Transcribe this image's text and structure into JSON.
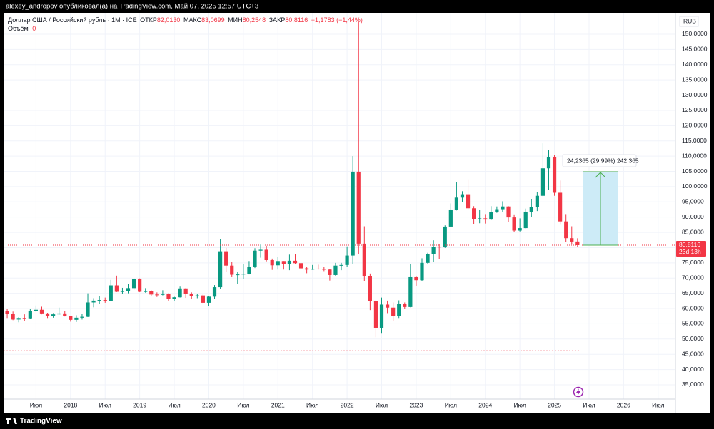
{
  "page": {
    "publisher": "alexey_andropov опубликовал(а) на TradingView.com, Май 07, 2025 12:57 UTC+3",
    "brand": "TradingView"
  },
  "chart_data": {
    "type": "candlestick",
    "legend": {
      "symbol": "Доллар США / Российский рубль · 1М · ICE",
      "open_label": "ОТКР",
      "open": "82,0130",
      "high_label": "МАКС",
      "high": "83,0699",
      "low_label": "МИН",
      "low": "80,2548",
      "close_label": "ЗАКР",
      "close": "80,8116",
      "change": "−1,1783 (−1,44%)",
      "volume_label": "Объём",
      "volume": "0"
    },
    "currency": "RUB",
    "last_price_label": "80,8116",
    "countdown": "23d 13h",
    "measure_label": "24,2365 (29,99%) 242 365",
    "up_color": "#089981",
    "down_color": "#f23645",
    "x": [
      "2017-02",
      "2017-03",
      "2017-04",
      "2017-05",
      "2017-06",
      "2017-07",
      "2017-08",
      "2017-09",
      "2017-10",
      "2017-11",
      "2017-12",
      "2018-01",
      "2018-02",
      "2018-03",
      "2018-04",
      "2018-05",
      "2018-06",
      "2018-07",
      "2018-08",
      "2018-09",
      "2018-10",
      "2018-11",
      "2018-12",
      "2019-01",
      "2019-02",
      "2019-03",
      "2019-04",
      "2019-05",
      "2019-06",
      "2019-07",
      "2019-08",
      "2019-09",
      "2019-10",
      "2019-11",
      "2019-12",
      "2020-01",
      "2020-02",
      "2020-03",
      "2020-04",
      "2020-05",
      "2020-06",
      "2020-07",
      "2020-08",
      "2020-09",
      "2020-10",
      "2020-11",
      "2020-12",
      "2021-01",
      "2021-02",
      "2021-03",
      "2021-04",
      "2021-05",
      "2021-06",
      "2021-07",
      "2021-08",
      "2021-09",
      "2021-10",
      "2021-11",
      "2021-12",
      "2022-01",
      "2022-02",
      "2022-03",
      "2022-04",
      "2022-05",
      "2022-06",
      "2022-07",
      "2022-08",
      "2022-09",
      "2022-10",
      "2022-11",
      "2022-12",
      "2023-01",
      "2023-02",
      "2023-03",
      "2023-04",
      "2023-05",
      "2023-06",
      "2023-07",
      "2023-08",
      "2023-09",
      "2023-10",
      "2023-11",
      "2023-12",
      "2024-01",
      "2024-02",
      "2024-03",
      "2024-04",
      "2024-05",
      "2024-06",
      "2024-07",
      "2024-08",
      "2024-09",
      "2024-10",
      "2024-11",
      "2024-12",
      "2025-01",
      "2025-02",
      "2025-03",
      "2025-04",
      "2025-05"
    ],
    "open": [
      59.2,
      58.2,
      56.4,
      56.9,
      56.8,
      59.1,
      59.6,
      58.4,
      57.6,
      58.1,
      58.4,
      57.6,
      56.3,
      57.0,
      57.3,
      62.0,
      62.6,
      62.8,
      62.5,
      67.6,
      65.5,
      65.7,
      66.7,
      69.6,
      65.5,
      65.7,
      64.6,
      64.5,
      64.8,
      63.1,
      63.7,
      66.6,
      64.9,
      64.0,
      64.3,
      61.9,
      63.9,
      67.0,
      78.8,
      74.1,
      71.1,
      71.2,
      71.4,
      73.6,
      79.0,
      79.3,
      75.9,
      74.2,
      75.6,
      74.6,
      75.7,
      74.9,
      73.2,
      72.8,
      73.1,
      73.0,
      72.8,
      71.0,
      74.1,
      74.3,
      77.4,
      104.9,
      81.3,
      70.6,
      62.5,
      53.7,
      61.3,
      60.3,
      57.5,
      61.6,
      60.5,
      70.3,
      69.3,
      75.0,
      77.9,
      80.3,
      80.1,
      86.9,
      92.5,
      96.4,
      97.5,
      92.9,
      89.3,
      89.6,
      89.2,
      91.7,
      92.6,
      93.5,
      89.9,
      85.6,
      86.4,
      91.8,
      93.2,
      97.0,
      106.0,
      109.6,
      98.0,
      88.6,
      83.1,
      82.013
    ],
    "high": [
      60.0,
      59.0,
      57.2,
      58.1,
      59.9,
      61.0,
      60.6,
      58.6,
      58.5,
      60.3,
      59.1,
      57.6,
      57.8,
      58.2,
      65.0,
      63.4,
      64.0,
      63.6,
      69.4,
      70.8,
      66.8,
      68.0,
      69.9,
      69.9,
      66.7,
      66.0,
      65.3,
      66.0,
      65.0,
      63.9,
      67.2,
      66.7,
      65.3,
      64.8,
      64.6,
      64.0,
      67.7,
      82.8,
      79.9,
      75.3,
      72.0,
      74.5,
      75.6,
      79.8,
      81.0,
      80.6,
      76.4,
      77.0,
      75.6,
      77.7,
      78.0,
      75.0,
      73.6,
      74.3,
      74.4,
      73.6,
      73.0,
      75.0,
      75.0,
      80.4,
      110.0,
      154.0,
      87.0,
      71.5,
      62.7,
      63.6,
      62.6,
      62.0,
      62.7,
      62.0,
      74.5,
      70.6,
      76.5,
      78.3,
      82.4,
      81.2,
      87.3,
      94.5,
      101.5,
      98.5,
      102.4,
      93.6,
      92.5,
      91.0,
      93.6,
      93.5,
      95.2,
      93.6,
      90.9,
      89.6,
      92.8,
      96.0,
      98.3,
      114.2,
      112.0,
      110.3,
      102.0,
      91.0,
      87.0,
      83.0699
    ],
    "low": [
      56.9,
      56.2,
      55.5,
      55.8,
      56.6,
      58.9,
      58.1,
      56.9,
      57.0,
      58.0,
      57.4,
      55.7,
      55.6,
      56.4,
      57.2,
      60.4,
      61.6,
      61.9,
      62.4,
      65.4,
      64.9,
      65.0,
      66.1,
      65.4,
      65.2,
      64.0,
      63.8,
      64.3,
      62.5,
      62.5,
      63.6,
      63.5,
      63.2,
      63.4,
      61.8,
      60.9,
      63.1,
      66.5,
      72.0,
      70.3,
      68.0,
      69.8,
      71.2,
      73.3,
      76.7,
      75.5,
      72.7,
      72.8,
      72.8,
      72.6,
      74.6,
      72.9,
      71.6,
      72.7,
      72.8,
      72.3,
      69.2,
      70.6,
      72.6,
      73.6,
      74.7,
      78.0,
      69.0,
      59.5,
      50.6,
      52.0,
      58.5,
      56.0,
      56.9,
      59.8,
      60.4,
      67.5,
      69.0,
      74.5,
      75.4,
      76.3,
      79.9,
      86.7,
      92.2,
      95.0,
      92.4,
      87.6,
      88.0,
      87.9,
      89.0,
      91.4,
      91.7,
      88.5,
      85.1,
      85.3,
      86.3,
      90.0,
      92.0,
      96.8,
      99.0,
      97.0,
      87.5,
      81.9,
      81.0,
      80.2548
    ],
    "close": [
      58.2,
      56.4,
      56.9,
      56.8,
      59.1,
      59.6,
      58.4,
      57.6,
      58.1,
      58.4,
      57.6,
      56.3,
      57.0,
      57.3,
      62.0,
      62.6,
      62.8,
      62.5,
      67.6,
      65.5,
      65.7,
      66.7,
      69.6,
      65.5,
      65.7,
      64.6,
      64.5,
      64.8,
      63.1,
      63.7,
      66.6,
      64.9,
      64.0,
      64.3,
      61.9,
      63.9,
      67.0,
      78.8,
      74.1,
      71.1,
      71.2,
      71.4,
      73.6,
      79.0,
      79.3,
      75.9,
      74.2,
      75.6,
      74.6,
      75.7,
      74.9,
      73.2,
      72.8,
      73.1,
      73.0,
      72.8,
      71.0,
      74.1,
      74.3,
      77.4,
      104.9,
      81.3,
      70.6,
      62.5,
      53.7,
      61.3,
      60.3,
      57.5,
      61.6,
      60.5,
      70.3,
      69.3,
      75.0,
      77.9,
      80.3,
      80.1,
      86.9,
      92.5,
      96.4,
      97.5,
      92.9,
      89.3,
      89.6,
      89.2,
      91.7,
      92.6,
      93.5,
      89.9,
      85.6,
      86.4,
      91.8,
      93.2,
      97.0,
      106.0,
      109.6,
      98.0,
      88.6,
      83.1,
      81.9899,
      80.8116
    ],
    "xlim": [
      "2017-01",
      "2026-10"
    ],
    "xticks": [
      {
        "value": "2017-07",
        "label": "Июл"
      },
      {
        "value": "2018-01",
        "label": "2018"
      },
      {
        "value": "2018-07",
        "label": "Июл"
      },
      {
        "value": "2019-01",
        "label": "2019"
      },
      {
        "value": "2019-07",
        "label": "Июл"
      },
      {
        "value": "2020-01",
        "label": "2020"
      },
      {
        "value": "2020-07",
        "label": "Июл"
      },
      {
        "value": "2021-01",
        "label": "2021"
      },
      {
        "value": "2021-07",
        "label": "Июл"
      },
      {
        "value": "2022-01",
        "label": "2022"
      },
      {
        "value": "2022-07",
        "label": "Июл"
      },
      {
        "value": "2023-01",
        "label": "2023"
      },
      {
        "value": "2023-07",
        "label": "Июл"
      },
      {
        "value": "2024-01",
        "label": "2024"
      },
      {
        "value": "2024-07",
        "label": "Июл"
      },
      {
        "value": "2025-01",
        "label": "2025"
      },
      {
        "value": "2025-07",
        "label": "Июл"
      },
      {
        "value": "2026-01",
        "label": "2026"
      },
      {
        "value": "2026-07",
        "label": "Июл"
      }
    ],
    "ylim": [
      30.32,
      157.01
    ],
    "yticks": [
      {
        "value": 35,
        "label": "35,0000"
      },
      {
        "value": 40,
        "label": "40,0000"
      },
      {
        "value": 45,
        "label": "45,0000"
      },
      {
        "value": 50,
        "label": "50,0000"
      },
      {
        "value": 55,
        "label": "55,0000"
      },
      {
        "value": 60,
        "label": "60,0000"
      },
      {
        "value": 65,
        "label": "65,0000"
      },
      {
        "value": 70,
        "label": "70,0000"
      },
      {
        "value": 75,
        "label": "75,0000"
      },
      {
        "value": 80,
        "label": "80,0000"
      },
      {
        "value": 85,
        "label": "85,0000"
      },
      {
        "value": 90,
        "label": "90,0000"
      },
      {
        "value": 95,
        "label": "95,0000"
      },
      {
        "value": 100,
        "label": "100,0000"
      },
      {
        "value": 105,
        "label": "105,0000"
      },
      {
        "value": 110,
        "label": "110,0000"
      },
      {
        "value": 115,
        "label": "115,0000"
      },
      {
        "value": 120,
        "label": "120,0000"
      },
      {
        "value": 125,
        "label": "125,0000"
      },
      {
        "value": 130,
        "label": "130,0000"
      },
      {
        "value": 135,
        "label": "135,0000"
      },
      {
        "value": 140,
        "label": "140,0000"
      },
      {
        "value": 145,
        "label": "145,0000"
      },
      {
        "value": 150,
        "label": "150,0000"
      }
    ],
    "grid": true
  }
}
